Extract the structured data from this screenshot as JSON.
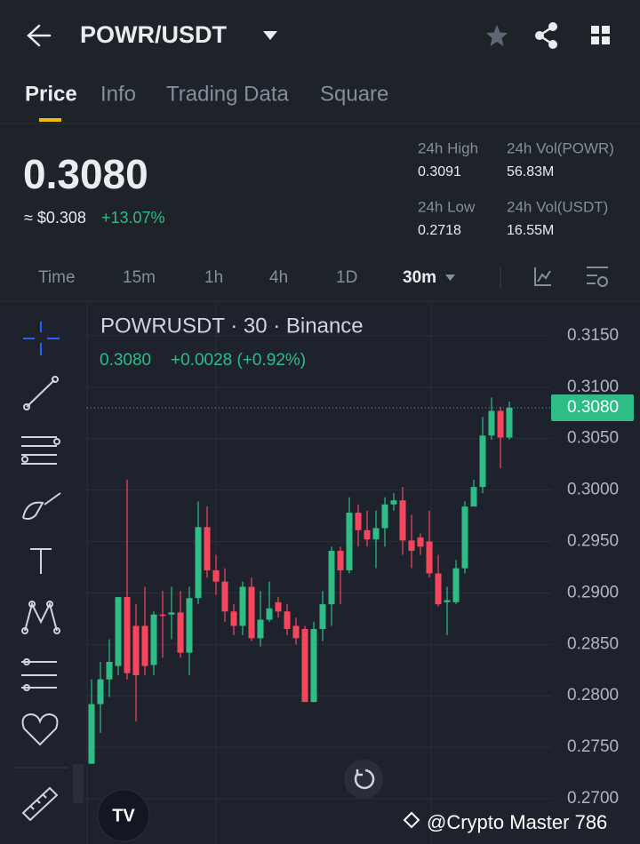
{
  "header": {
    "pair": "POWR/USDT",
    "tabs": [
      "Price",
      "Info",
      "Trading Data",
      "Square"
    ]
  },
  "summary": {
    "price": "0.3080",
    "usd_price": "≈ $0.308",
    "change": "+13.07%",
    "stats": [
      {
        "label": "24h High",
        "value": "0.3091"
      },
      {
        "label": "24h Vol(POWR)",
        "value": "56.83M"
      },
      {
        "label": "24h Low",
        "value": "0.2718"
      },
      {
        "label": "24h Vol(USDT)",
        "value": "16.55M"
      }
    ]
  },
  "intervals": [
    "Time",
    "15m",
    "1h",
    "4h",
    "1D",
    "30m"
  ],
  "chart_data": {
    "type": "candlestick",
    "title": "POWRUSDT · 30 · Binance",
    "ohlc_price": "0.3080",
    "ohlc_change": "+0.0028 (+0.92%)",
    "open": [
      0.2734,
      0.2792,
      0.2816,
      0.2829,
      0.2896,
      0.2868,
      0.2868,
      0.283,
      0.2879,
      0.2879,
      0.2881,
      0.2842,
      0.2895,
      0.2964,
      0.2922,
      0.2911,
      0.2882,
      0.2868,
      0.2906,
      0.2856,
      0.2874,
      0.2891,
      0.2882,
      0.2868,
      0.2865,
      0.2794,
      0.2865,
      0.2889,
      0.2941,
      0.2922,
      0.2978,
      0.2961,
      0.2952,
      0.2963,
      0.2986,
      0.299,
      0.2951,
      0.2954,
      0.295,
      0.2919,
      0.2891,
      0.2891,
      0.2924,
      0.2984,
      0.3003,
      0.3053,
      0.3077,
      0.3051
    ],
    "high": [
      0.2816,
      0.2833,
      0.2855,
      0.2896,
      0.301,
      0.2889,
      0.2906,
      0.2882,
      0.2902,
      0.2906,
      0.2902,
      0.2906,
      0.2989,
      0.2984,
      0.2937,
      0.2924,
      0.2889,
      0.2911,
      0.2915,
      0.2902,
      0.2911,
      0.2896,
      0.2889,
      0.2876,
      0.2868,
      0.2872,
      0.2902,
      0.2945,
      0.2945,
      0.2993,
      0.2986,
      0.298,
      0.298,
      0.2993,
      0.2997,
      0.3003,
      0.2976,
      0.2958,
      0.298,
      0.2937,
      0.2906,
      0.2932,
      0.2989,
      0.301,
      0.3071,
      0.309,
      0.3081,
      0.3086
    ],
    "low": [
      0.2734,
      0.2764,
      0.2799,
      0.282,
      0.2816,
      0.2775,
      0.282,
      0.282,
      0.2837,
      0.2855,
      0.2837,
      0.282,
      0.2889,
      0.2915,
      0.2898,
      0.2872,
      0.2859,
      0.2859,
      0.2853,
      0.2848,
      0.2872,
      0.2876,
      0.2859,
      0.285,
      0.2794,
      0.2794,
      0.2853,
      0.2868,
      0.2889,
      0.2919,
      0.2945,
      0.2945,
      0.2924,
      0.2945,
      0.298,
      0.2937,
      0.2924,
      0.2937,
      0.2915,
      0.2887,
      0.2859,
      0.2889,
      0.2919,
      0.2984,
      0.2997,
      0.3049,
      0.3021,
      0.3049
    ],
    "close": [
      0.2792,
      0.2816,
      0.2833,
      0.2896,
      0.2822,
      0.282,
      0.2829,
      0.2879,
      0.2878,
      0.2881,
      0.2842,
      0.2895,
      0.2964,
      0.2922,
      0.2911,
      0.2882,
      0.2868,
      0.2906,
      0.2856,
      0.2874,
      0.2885,
      0.2882,
      0.2865,
      0.2856,
      0.2794,
      0.2865,
      0.2889,
      0.2941,
      0.2922,
      0.2978,
      0.2961,
      0.2952,
      0.2963,
      0.2986,
      0.299,
      0.2951,
      0.2941,
      0.2945,
      0.2919,
      0.2889,
      0.2893,
      0.2924,
      0.2984,
      0.3003,
      0.3053,
      0.3077,
      0.3051,
      0.308
    ],
    "up_color": "#2ebd85",
    "down_color": "#f6465d",
    "ylim": [
      0.2656,
      0.3181
    ],
    "yticks": [
      {
        "value": 0.315,
        "label": "0.3150"
      },
      {
        "value": 0.31,
        "label": "0.3100"
      },
      {
        "value": 0.305,
        "label": "0.3050"
      },
      {
        "value": 0.3,
        "label": "0.3000"
      },
      {
        "value": 0.295,
        "label": "0.2950"
      },
      {
        "value": 0.29,
        "label": "0.2900"
      },
      {
        "value": 0.285,
        "label": "0.2850"
      },
      {
        "value": 0.28,
        "label": "0.2800"
      },
      {
        "value": 0.275,
        "label": "0.2750"
      },
      {
        "value": 0.27,
        "label": "0.2700"
      }
    ],
    "grid": true,
    "last_price": {
      "value": 0.308,
      "label": "0.3080"
    }
  },
  "watermark": "@Crypto Master 786"
}
